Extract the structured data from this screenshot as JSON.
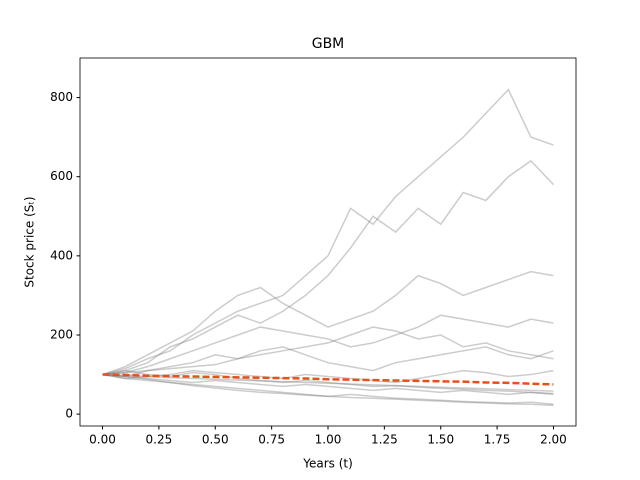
{
  "chart_data": {
    "type": "line",
    "title": "GBM",
    "x_label": "Years (t)",
    "y_label": "Stock price (Sₜ)",
    "x": [
      0,
      0.1,
      0.2,
      0.3,
      0.4,
      0.5,
      0.6,
      0.7,
      0.8,
      0.9,
      1.0,
      1.1,
      1.2,
      1.3,
      1.4,
      1.5,
      1.6,
      1.7,
      1.8,
      1.9,
      2.0
    ],
    "xlim": [
      -0.1,
      2.1
    ],
    "ylim": [
      -30,
      900
    ],
    "xticks": [
      {
        "value": 0,
        "label": "0.00"
      },
      {
        "value": 0.25,
        "label": "0.25"
      },
      {
        "value": 0.5,
        "label": "0.50"
      },
      {
        "value": 0.75,
        "label": "0.75"
      },
      {
        "value": 1,
        "label": "1.00"
      },
      {
        "value": 1.25,
        "label": "1.25"
      },
      {
        "value": 1.5,
        "label": "1.50"
      },
      {
        "value": 1.75,
        "label": "1.75"
      },
      {
        "value": 2,
        "label": "2.00"
      }
    ],
    "yticks": [
      0,
      200,
      400,
      600,
      800
    ],
    "series": [
      {
        "color": "#808080",
        "alpha": 0.4,
        "values": [
          100,
          115,
          140,
          160,
          200,
          230,
          260,
          280,
          300,
          350,
          400,
          520,
          480,
          550,
          600,
          650,
          700,
          760,
          820,
          700,
          680
        ]
      },
      {
        "color": "#808080",
        "alpha": 0.4,
        "values": [
          100,
          110,
          130,
          170,
          190,
          220,
          250,
          230,
          260,
          300,
          350,
          420,
          500,
          460,
          520,
          480,
          560,
          540,
          600,
          640,
          580
        ]
      },
      {
        "color": "#808080",
        "alpha": 0.4,
        "values": [
          100,
          120,
          150,
          180,
          210,
          260,
          300,
          320,
          280,
          250,
          220,
          240,
          260,
          300,
          350,
          330,
          300,
          320,
          340,
          360,
          350
        ]
      },
      {
        "color": "#808080",
        "alpha": 0.4,
        "values": [
          100,
          105,
          120,
          140,
          160,
          180,
          200,
          220,
          210,
          200,
          190,
          170,
          180,
          200,
          220,
          250,
          240,
          230,
          220,
          240,
          230
        ]
      },
      {
        "color": "#808080",
        "alpha": 0.4,
        "values": [
          100,
          95,
          110,
          120,
          130,
          150,
          140,
          160,
          170,
          150,
          130,
          120,
          110,
          130,
          140,
          150,
          160,
          170,
          150,
          140,
          160
        ]
      },
      {
        "color": "#808080",
        "alpha": 0.4,
        "values": [
          100,
          90,
          95,
          100,
          110,
          105,
          100,
          95,
          90,
          100,
          95,
          90,
          85,
          80,
          90,
          100,
          110,
          105,
          95,
          100,
          110
        ]
      },
      {
        "color": "#808080",
        "alpha": 0.4,
        "values": [
          100,
          95,
          90,
          85,
          80,
          85,
          80,
          75,
          70,
          75,
          70,
          65,
          60,
          65,
          60,
          55,
          60,
          55,
          50,
          55,
          50
        ]
      },
      {
        "color": "#808080",
        "alpha": 0.4,
        "values": [
          100,
          90,
          85,
          80,
          75,
          70,
          65,
          60,
          55,
          50,
          45,
          50,
          45,
          40,
          38,
          35,
          32,
          30,
          28,
          30,
          25
        ]
      },
      {
        "color": "#808080",
        "alpha": 0.4,
        "values": [
          100,
          95,
          88,
          80,
          72,
          66,
          60,
          55,
          52,
          48,
          45,
          42,
          40,
          38,
          35,
          33,
          30,
          28,
          26,
          25,
          22
        ]
      },
      {
        "color": "#808080",
        "alpha": 0.4,
        "values": [
          100,
          105,
          110,
          115,
          120,
          125,
          140,
          150,
          160,
          170,
          180,
          200,
          220,
          210,
          190,
          200,
          170,
          180,
          160,
          150,
          140
        ]
      },
      {
        "color": "#808080",
        "alpha": 0.4,
        "values": [
          100,
          98,
          95,
          92,
          90,
          88,
          86,
          84,
          82,
          80,
          78,
          76,
          74,
          72,
          70,
          68,
          66,
          64,
          62,
          60,
          58
        ]
      },
      {
        "color": "#808080",
        "alpha": 0.4,
        "values": [
          100,
          110,
          100,
          95,
          105,
          100,
          90,
          85,
          80,
          85,
          80,
          75,
          70,
          72,
          68,
          65,
          63,
          60,
          58,
          55,
          52
        ]
      },
      {
        "color": "#e8501a",
        "alpha": 1,
        "dashed": true,
        "values": [
          100,
          99,
          97,
          96,
          95,
          94,
          93,
          92,
          91,
          90,
          88,
          87,
          86,
          85,
          84,
          83,
          82,
          80,
          79,
          77,
          75
        ]
      }
    ]
  }
}
